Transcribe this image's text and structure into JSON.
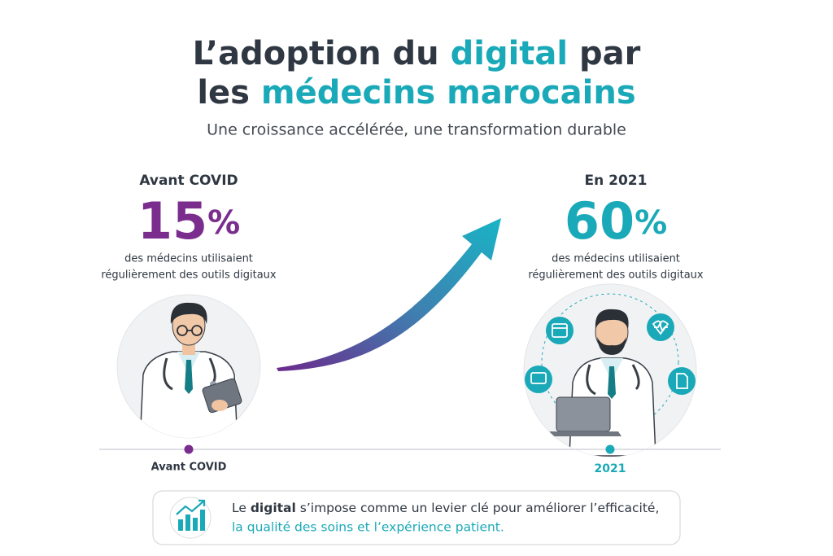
{
  "header": {
    "title_line1": {
      "before": "L’adoption du ",
      "highlight": "digital",
      "after": " par"
    },
    "title_line2": {
      "before": "les ",
      "highlight": "médecins marocains"
    },
    "subtitle": "Une croissance accélérée, une transformation durable"
  },
  "before": {
    "label": "Avant COVID",
    "value": 15,
    "unit": "%",
    "description": [
      "des médecins utilisaient",
      "régulièrement des outils digitaux"
    ]
  },
  "after": {
    "label": "En 2021",
    "value": 60,
    "unit": "%",
    "description": [
      "des médecins utilisaient",
      "régulièrement des outils digitaux"
    ]
  },
  "timeline": [
    "Avant COVID",
    "2021"
  ],
  "message": {
    "line1_before": "Le ",
    "line1_highlight": "digital",
    "line1_after": " s’impose comme un levier clé pour améliorer l’efficacité,",
    "line2": "la qualité des soins et l’expérience patient."
  }
}
